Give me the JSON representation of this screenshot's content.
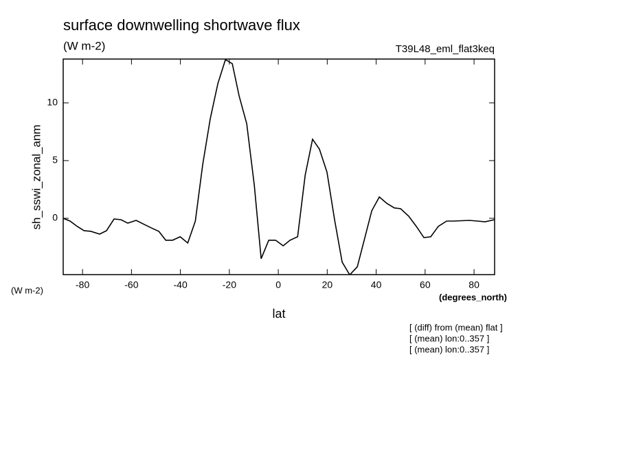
{
  "chart_data": {
    "type": "line",
    "title": "surface downwelling shortwave flux",
    "subtitle": "(W m-2)",
    "run_label": "T39L48_eml_flat3keq",
    "ylabel": "sh_sswi_zonal_anm",
    "yunits": "(W m-2)",
    "xlabel": "lat",
    "xunits": "(degrees_north)",
    "annotations": [
      "[ (diff) from (mean) flat ]",
      "[ (mean) lon:0..357 ]",
      "[ (mean) lon:0..357 ]"
    ],
    "xlim": [
      -87.9,
      88.4
    ],
    "ylim": [
      -4.88,
      13.8
    ],
    "xticks": [
      -80,
      -60,
      -40,
      -20,
      0,
      20,
      40,
      60,
      80
    ],
    "yticks": [
      0,
      5,
      10
    ],
    "grid": false,
    "series": [
      {
        "name": "sh_sswi_zonal_anm",
        "color": "#000000",
        "x": [
          -87.9,
          -85.1,
          -82.2,
          -79.4,
          -76.6,
          -73,
          -70.2,
          -67.1,
          -64.3,
          -61.5,
          -58.1,
          -54.7,
          -51.9,
          -48.8,
          -46,
          -43.2,
          -40.1,
          -37,
          -33.9,
          -30.9,
          -27.8,
          -24.7,
          -21.6,
          -18.8,
          -16,
          -12.9,
          -9.8,
          -7,
          -3.9,
          -1.1,
          2,
          4.8,
          7.9,
          11,
          14,
          16.8,
          19.9,
          23,
          26.1,
          29.2,
          32.3,
          35.1,
          38.2,
          41.3,
          44.3,
          47.4,
          50,
          53.3,
          56.4,
          59.5,
          62.3,
          65.4,
          68.8,
          71.6,
          78,
          81.4,
          84.5,
          88.4
        ],
        "values": [
          0,
          -0.24,
          -0.7,
          -1.07,
          -1.13,
          -1.37,
          -1.07,
          -0.06,
          -0.12,
          -0.42,
          -0.18,
          -0.54,
          -0.83,
          -1.13,
          -1.9,
          -1.9,
          -1.6,
          -2.14,
          -0.24,
          4.64,
          8.63,
          11.67,
          13.75,
          13.4,
          10.6,
          8.2,
          2.86,
          -3.5,
          -1.9,
          -1.9,
          -2.38,
          -1.9,
          -1.6,
          3.75,
          6.85,
          6.0,
          4.0,
          -0.12,
          -3.8,
          -4.9,
          -4.2,
          -1.9,
          0.65,
          1.85,
          1.3,
          0.9,
          0.83,
          0.18,
          -0.7,
          -1.67,
          -1.6,
          -0.7,
          -0.24,
          -0.24,
          -0.18,
          -0.24,
          -0.3,
          -0.12
        ]
      }
    ]
  }
}
